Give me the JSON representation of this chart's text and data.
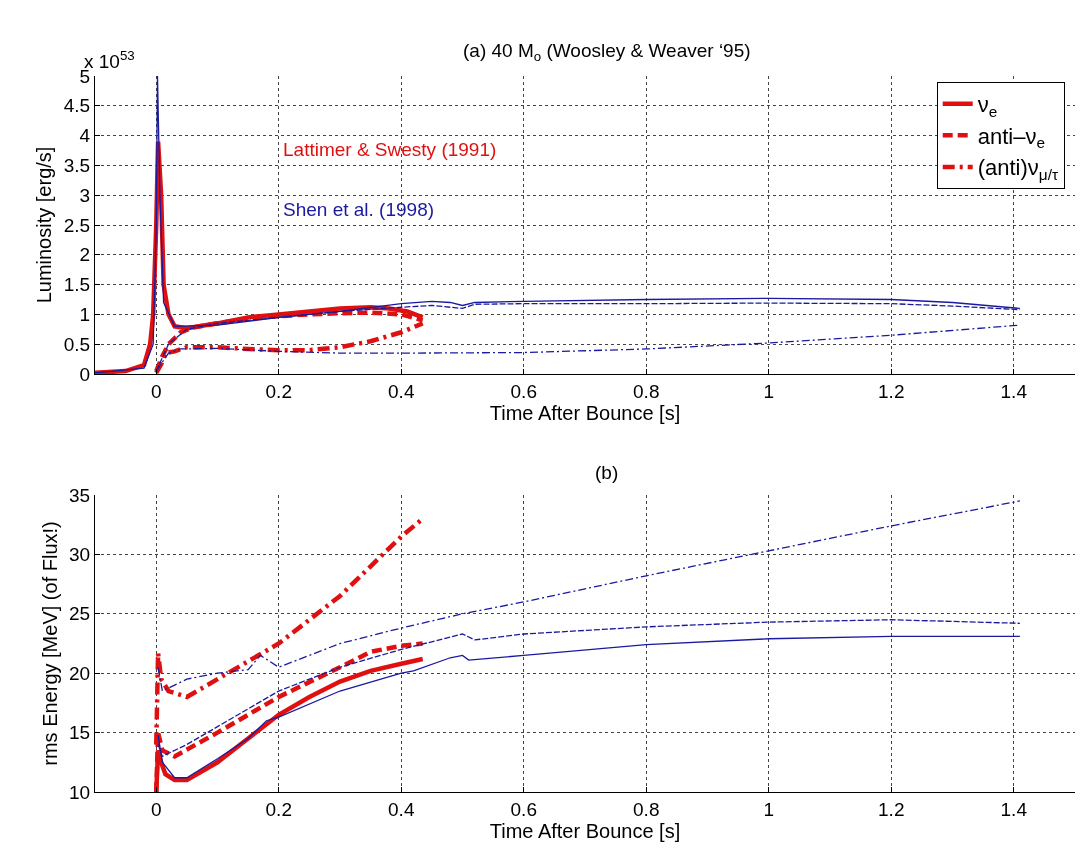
{
  "chart_data": [
    {
      "type": "line",
      "title": "(a) 40 M$_{o}$ (Woosley & Weaver ‘95)",
      "xlabel": "Time After Bounce [s]",
      "ylabel": "Luminosity [erg/s]",
      "xlim": [
        -0.1,
        1.5
      ],
      "xticks": [
        0,
        0.2,
        0.4,
        0.6,
        0.8,
        1,
        1.2,
        1.4
      ],
      "ylim": [
        0,
        5
      ],
      "yticks": [
        0,
        0.5,
        1,
        1.5,
        2,
        2.5,
        3,
        3.5,
        4,
        4.5,
        5
      ],
      "grid": true,
      "legend": "top right",
      "annotations": [
        "x 10$^{53}$",
        "Lattimer & Swesty (1991)",
        "Shen et al. (1998)"
      ],
      "series": [
        {
          "name": "ν$_{e}$",
          "color": "#e01010",
          "line_style": "solid",
          "x": [
            -0.1,
            -0.05,
            -0.02,
            -0.01,
            -0.005,
            0,
            0.003,
            0.008,
            0.012,
            0.02,
            0.03,
            0.05,
            0.1,
            0.15,
            0.2,
            0.25,
            0.3,
            0.35,
            0.38,
            0.41,
            0.435
          ],
          "values": [
            0.02,
            0.05,
            0.15,
            0.5,
            1.0,
            2.5,
            3.9,
            3.0,
            1.5,
            1.0,
            0.8,
            0.77,
            0.85,
            0.95,
            1.0,
            1.05,
            1.1,
            1.12,
            1.1,
            1.05,
            0.95
          ]
        },
        {
          "name": "anti–ν$_{e}$",
          "color": "#e01010",
          "line_style": "dashed",
          "x": [
            0,
            0.01,
            0.02,
            0.04,
            0.06,
            0.1,
            0.15,
            0.2,
            0.25,
            0.3,
            0.35,
            0.4,
            0.435
          ],
          "values": [
            0.05,
            0.3,
            0.5,
            0.7,
            0.78,
            0.85,
            0.93,
            0.97,
            1.0,
            1.02,
            1.03,
            1.0,
            0.9
          ]
        },
        {
          "name": "(anti)ν$_{μ/τ}$",
          "color": "#e01010",
          "line_style": "dashdot",
          "x": [
            0,
            0.01,
            0.015,
            0.03,
            0.05,
            0.1,
            0.15,
            0.2,
            0.25,
            0.3,
            0.35,
            0.4,
            0.435
          ],
          "values": [
            0.02,
            0.2,
            0.35,
            0.38,
            0.45,
            0.45,
            0.42,
            0.4,
            0.4,
            0.45,
            0.55,
            0.7,
            0.85
          ]
        },
        {
          "color": "#1a1aa0",
          "line_style": "solid",
          "x": [
            -0.1,
            -0.02,
            -0.005,
            0,
            0.002,
            0.006,
            0.012,
            0.03,
            0.1,
            0.2,
            0.3,
            0.4,
            0.45,
            0.48,
            0.5,
            0.52,
            0.6,
            0.8,
            1.0,
            1.2,
            1.3,
            1.41
          ],
          "values": [
            0.02,
            0.1,
            0.5,
            2.5,
            5.0,
            3.0,
            1.2,
            0.8,
            0.82,
            0.95,
            1.05,
            1.18,
            1.22,
            1.2,
            1.15,
            1.2,
            1.22,
            1.25,
            1.27,
            1.25,
            1.2,
            1.1
          ]
        },
        {
          "color": "#1a1aa0",
          "line_style": "dashed",
          "x": [
            0,
            0.02,
            0.05,
            0.1,
            0.2,
            0.3,
            0.4,
            0.45,
            0.5,
            0.52,
            0.6,
            0.8,
            1.0,
            1.2,
            1.3,
            1.41
          ],
          "values": [
            0.05,
            0.5,
            0.75,
            0.85,
            0.95,
            1.05,
            1.12,
            1.15,
            1.1,
            1.17,
            1.18,
            1.18,
            1.19,
            1.18,
            1.14,
            1.08
          ]
        },
        {
          "color": "#1a1aa0",
          "line_style": "dashdot",
          "x": [
            0,
            0.02,
            0.04,
            0.1,
            0.2,
            0.3,
            0.4,
            0.6,
            0.8,
            1.0,
            1.2,
            1.41
          ],
          "values": [
            0.05,
            0.35,
            0.42,
            0.43,
            0.38,
            0.35,
            0.35,
            0.36,
            0.42,
            0.52,
            0.65,
            0.82
          ]
        }
      ]
    },
    {
      "type": "line",
      "title": "(b)",
      "xlabel": "Time After Bounce [s]",
      "ylabel": "rms Energy [MeV] (of Flux!)",
      "xlim": [
        -0.1,
        1.5
      ],
      "xticks": [
        0,
        0.2,
        0.4,
        0.6,
        0.8,
        1,
        1.2,
        1.4
      ],
      "ylim": [
        10,
        35
      ],
      "yticks": [
        10,
        15,
        20,
        25,
        30,
        35
      ],
      "grid": true,
      "series": [
        {
          "color": "#e01010",
          "line_style": "solid",
          "x": [
            0,
            0.003,
            0.008,
            0.015,
            0.03,
            0.05,
            0.1,
            0.15,
            0.2,
            0.25,
            0.3,
            0.35,
            0.4,
            0.435
          ],
          "values": [
            10,
            13.5,
            12.5,
            11.5,
            11,
            11,
            12.5,
            14.5,
            16.5,
            18,
            19.3,
            20.2,
            20.8,
            21.2
          ]
        },
        {
          "color": "#e01010",
          "line_style": "dashed",
          "x": [
            0,
            0.003,
            0.01,
            0.03,
            0.1,
            0.2,
            0.3,
            0.35,
            0.4,
            0.435
          ],
          "values": [
            10,
            15,
            13.5,
            13,
            15,
            18,
            20.5,
            21.8,
            22.3,
            22.5
          ]
        },
        {
          "color": "#e01010",
          "line_style": "dashdot",
          "x": [
            0,
            0.003,
            0.008,
            0.02,
            0.05,
            0.1,
            0.15,
            0.2,
            0.25,
            0.3,
            0.35,
            0.4,
            0.435
          ],
          "values": [
            14,
            21.7,
            19.5,
            18.5,
            18,
            19.5,
            21,
            22.5,
            24.5,
            26.5,
            29,
            31.5,
            33
          ]
        },
        {
          "color": "#1a1aa0",
          "line_style": "solid",
          "x": [
            0.003,
            0.01,
            0.03,
            0.05,
            0.1,
            0.15,
            0.18,
            0.2,
            0.3,
            0.4,
            0.42,
            0.48,
            0.5,
            0.51,
            0.6,
            0.8,
            1.0,
            1.2,
            1.41
          ],
          "values": [
            14.8,
            12.5,
            11.2,
            11.2,
            12.8,
            14.5,
            16,
            16.3,
            18.5,
            20,
            20.2,
            21.3,
            21.5,
            21.1,
            21.5,
            22.4,
            22.9,
            23.1,
            23.1
          ]
        },
        {
          "color": "#1a1aa0",
          "line_style": "dashed",
          "x": [
            0.003,
            0.01,
            0.05,
            0.1,
            0.2,
            0.3,
            0.4,
            0.5,
            0.52,
            0.6,
            0.8,
            1.0,
            1.2,
            1.41
          ],
          "values": [
            14,
            13,
            14,
            15.5,
            18.5,
            20.5,
            22,
            23.3,
            22.8,
            23.3,
            23.9,
            24.3,
            24.5,
            24.2
          ]
        },
        {
          "color": "#1a1aa0",
          "line_style": "dashdot",
          "x": [
            0.003,
            0.01,
            0.05,
            0.1,
            0.15,
            0.17,
            0.2,
            0.3,
            0.4,
            0.5,
            0.6,
            0.8,
            1.0,
            1.2,
            1.41
          ],
          "values": [
            20.5,
            18.5,
            19.5,
            20,
            20.3,
            21.5,
            20.5,
            22.5,
            23.8,
            25,
            26,
            28.2,
            30.3,
            32.4,
            34.5
          ]
        }
      ]
    }
  ]
}
